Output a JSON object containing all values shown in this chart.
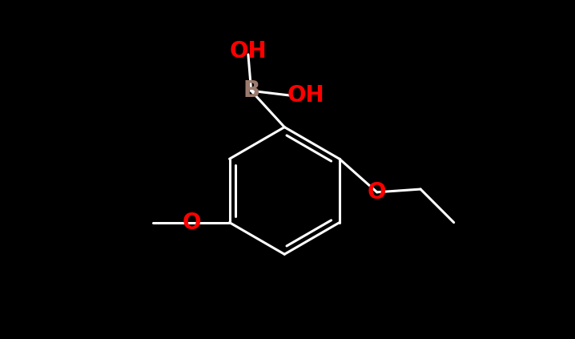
{
  "background_color": "#000000",
  "bond_color": "#ffffff",
  "bond_width": 2.2,
  "atom_B_color": "#9b7b6e",
  "atom_O_color": "#ff0000",
  "font_size_B": 20,
  "font_size_OH": 20,
  "font_size_O": 20,
  "figsize": [
    7.18,
    4.23
  ],
  "dpi": 100,
  "xlim": [
    -3.5,
    3.5
  ],
  "ylim": [
    -2.8,
    2.8
  ]
}
